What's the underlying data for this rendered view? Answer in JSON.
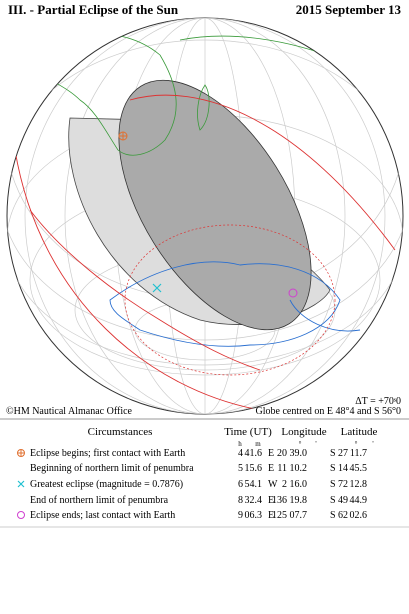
{
  "header": {
    "title": "III. - Partial Eclipse of the Sun",
    "date": "2015 September 13"
  },
  "map": {
    "delta_t": "ΔT = +70ˢ0",
    "globe_centre": "Globe centred on E 48°4 and S 56°0",
    "credit": "©HM Nautical Almanac Office"
  },
  "table": {
    "headers": [
      "Circumstances",
      "Time (UT)",
      "Longitude",
      "Latitude"
    ],
    "units": [
      "h",
      "m",
      "°",
      "'",
      "°",
      "'"
    ],
    "rows": [
      [
        "Eclipse begins; first contact with Earth",
        "4",
        "41.6",
        "E",
        "20",
        "39.0",
        "S",
        "27",
        "11.7"
      ],
      [
        "Beginning of northern limit of penumbra",
        "5",
        "15.6",
        "E",
        "11",
        "10.2",
        "S",
        "14",
        "45.5"
      ],
      [
        "Greatest eclipse (magnitude = 0.7876)",
        "6",
        "54.1",
        "W",
        "2",
        "16.0",
        "S",
        "72",
        "12.8"
      ],
      [
        "End of northern limit of penumbra",
        "8",
        "32.4",
        "E",
        "136",
        "19.8",
        "S",
        "49",
        "44.9"
      ],
      [
        "Eclipse ends; last contact with Earth",
        "9",
        "06.3",
        "E",
        "125",
        "07.7",
        "S",
        "62",
        "02.6"
      ]
    ]
  }
}
